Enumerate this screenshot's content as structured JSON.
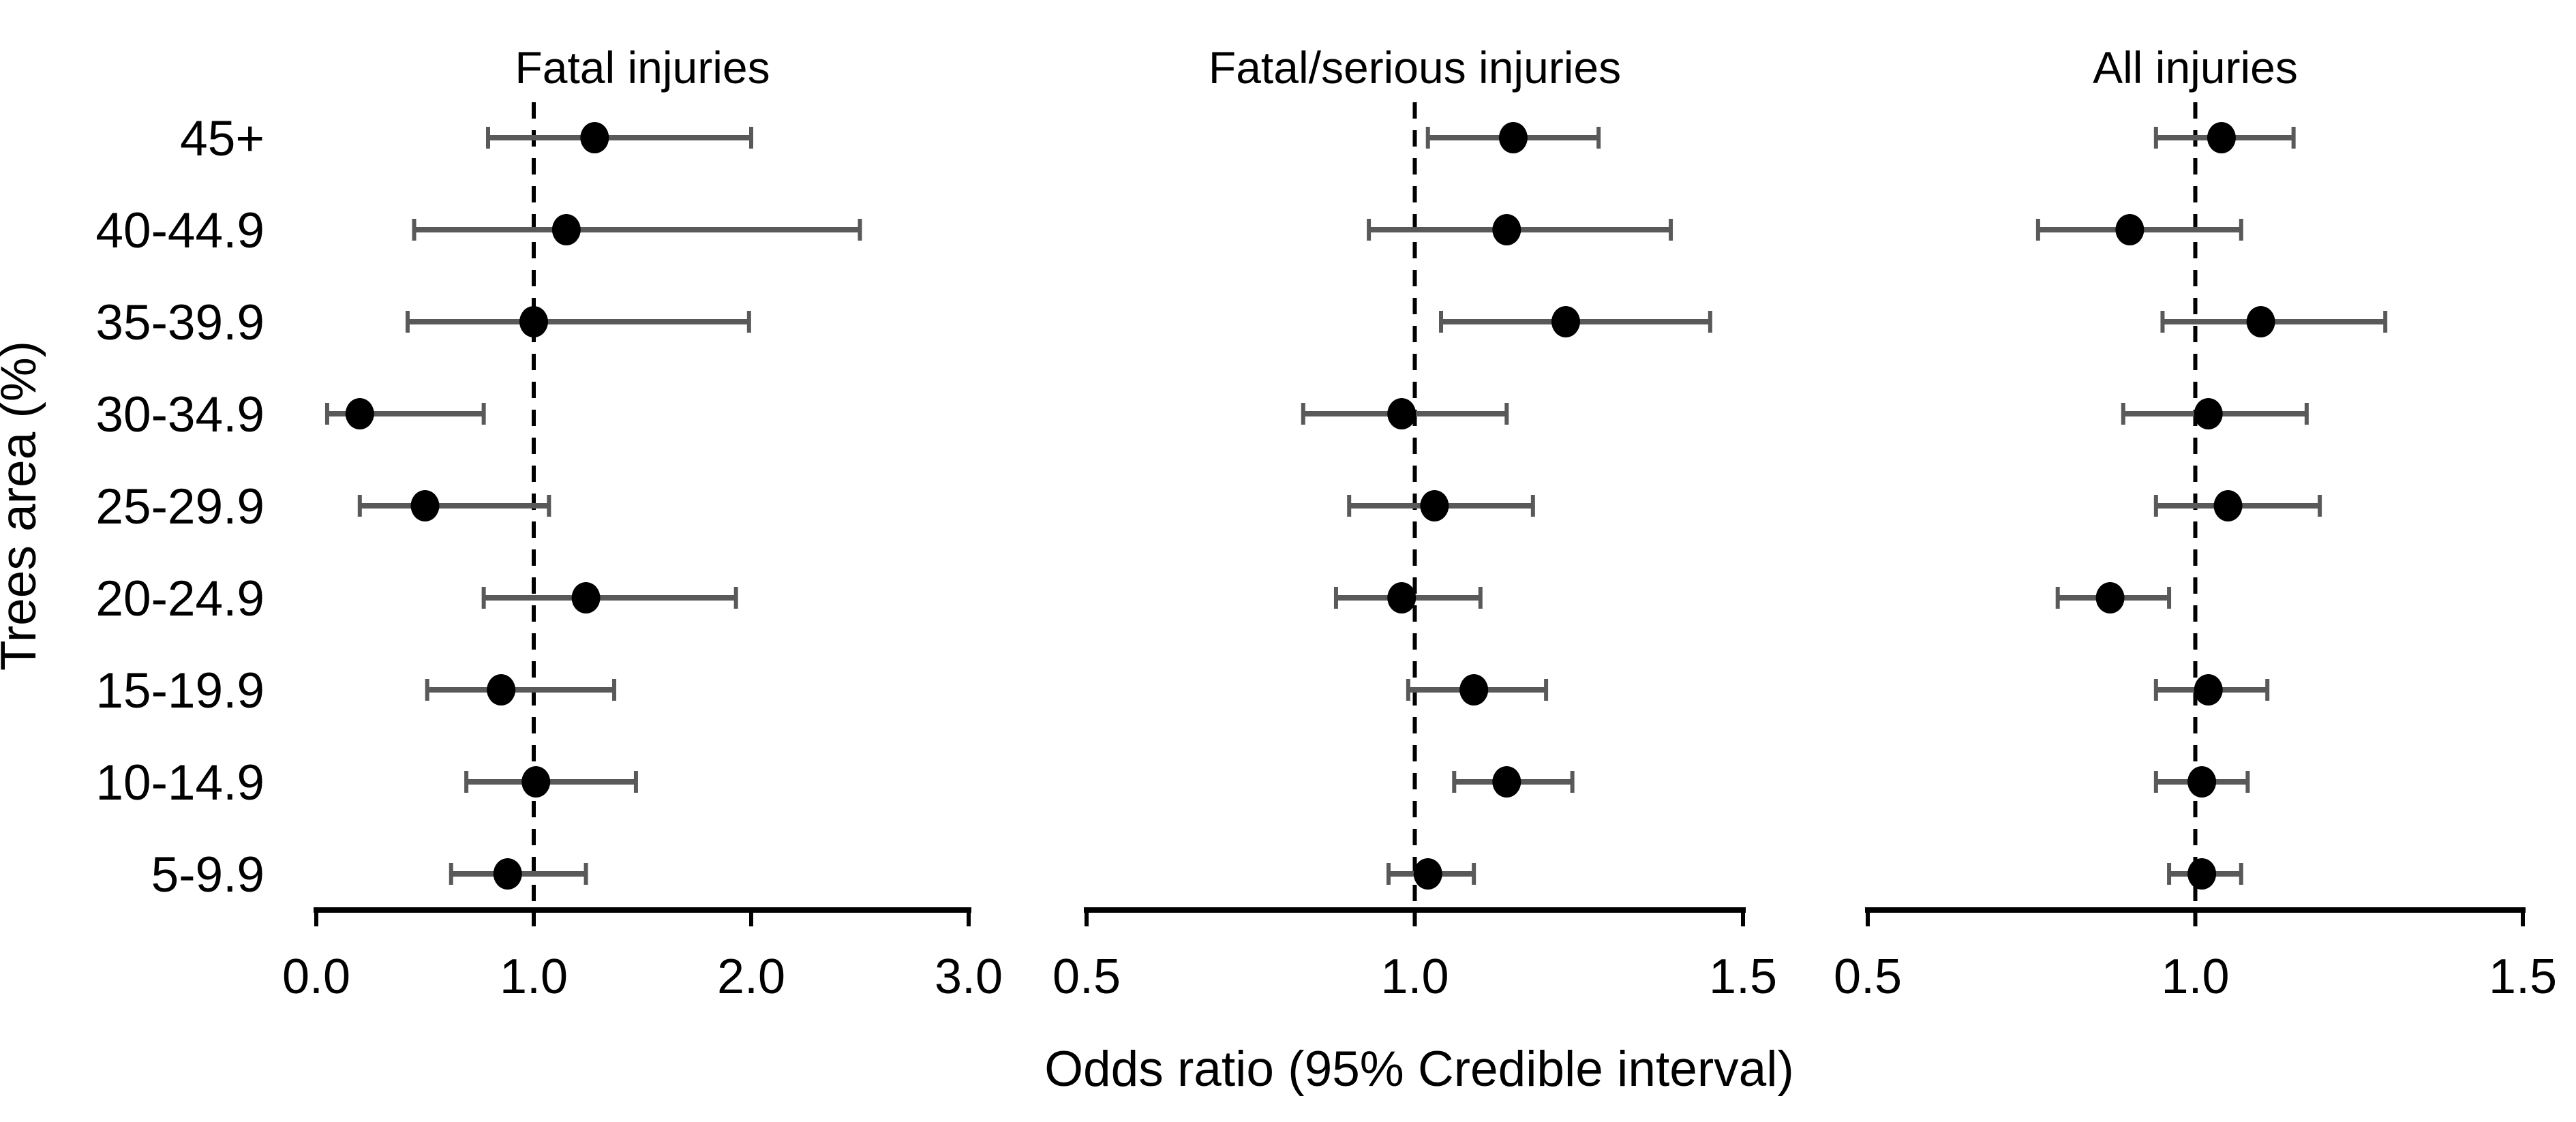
{
  "figure": {
    "y_axis_title": "Trees area (%)",
    "x_axis_title": "Odds ratio (95% Credible interval)",
    "categories": [
      "45+",
      "40-44.9",
      "35-39.9",
      "30-34.9",
      "25-29.9",
      "20-24.9",
      "15-19.9",
      "10-14.9",
      "5-9.9"
    ],
    "colors": {
      "marker": "#000000",
      "error_bar": "#595959",
      "axis": "#000000",
      "reference_line": "#000000",
      "text": "#000000",
      "background": "#ffffff"
    }
  },
  "chart_data": [
    {
      "type": "scatter",
      "subtype": "forest-plot",
      "title": "Fatal injuries",
      "categories": [
        "45+",
        "40-44.9",
        "35-39.9",
        "30-34.9",
        "25-29.9",
        "20-24.9",
        "15-19.9",
        "10-14.9",
        "5-9.9"
      ],
      "xlim": [
        0.0,
        3.0
      ],
      "xticks": [
        0.0,
        1.0,
        2.0,
        3.0
      ],
      "xtick_labels": [
        "0.0",
        "1.0",
        "2.0",
        "3.0"
      ],
      "reference_line": 1.0,
      "grid": false,
      "series": [
        {
          "name": "Odds ratio",
          "values": [
            1.28,
            1.15,
            1.0,
            0.2,
            0.5,
            1.24,
            0.85,
            1.01,
            0.88
          ],
          "ci_low": [
            0.79,
            0.45,
            0.42,
            0.05,
            0.2,
            0.77,
            0.51,
            0.69,
            0.62
          ],
          "ci_high": [
            2.0,
            2.5,
            1.99,
            0.77,
            1.07,
            1.93,
            1.37,
            1.47,
            1.24
          ]
        }
      ]
    },
    {
      "type": "scatter",
      "subtype": "forest-plot",
      "title": "Fatal/serious injuries",
      "categories": [
        "45+",
        "40-44.9",
        "35-39.9",
        "30-34.9",
        "25-29.9",
        "20-24.9",
        "15-19.9",
        "10-14.9",
        "5-9.9"
      ],
      "xlim": [
        0.5,
        1.5
      ],
      "xticks": [
        0.5,
        1.0,
        1.5
      ],
      "xtick_labels": [
        "0.5",
        "1.0",
        "1.5"
      ],
      "reference_line": 1.0,
      "grid": false,
      "series": [
        {
          "name": "Odds ratio",
          "values": [
            1.15,
            1.14,
            1.23,
            0.98,
            1.03,
            0.98,
            1.09,
            1.14,
            1.02
          ],
          "ci_low": [
            1.02,
            0.93,
            1.04,
            0.83,
            0.9,
            0.88,
            0.99,
            1.06,
            0.96
          ],
          "ci_high": [
            1.28,
            1.39,
            1.45,
            1.14,
            1.18,
            1.1,
            1.2,
            1.24,
            1.09
          ]
        }
      ]
    },
    {
      "type": "scatter",
      "subtype": "forest-plot",
      "title": "All injuries",
      "categories": [
        "45+",
        "40-44.9",
        "35-39.9",
        "30-34.9",
        "25-29.9",
        "20-24.9",
        "15-19.9",
        "10-14.9",
        "5-9.9"
      ],
      "xlim": [
        0.5,
        1.5
      ],
      "xticks": [
        0.5,
        1.0,
        1.5
      ],
      "xtick_labels": [
        "0.5",
        "1.0",
        "1.5"
      ],
      "reference_line": 1.0,
      "grid": false,
      "series": [
        {
          "name": "Odds ratio",
          "values": [
            1.04,
            0.9,
            1.1,
            1.02,
            1.05,
            0.87,
            1.02,
            1.01,
            1.01
          ],
          "ci_low": [
            0.94,
            0.76,
            0.95,
            0.89,
            0.94,
            0.79,
            0.94,
            0.94,
            0.96
          ],
          "ci_high": [
            1.15,
            1.07,
            1.29,
            1.17,
            1.19,
            0.96,
            1.11,
            1.08,
            1.07
          ]
        }
      ]
    }
  ]
}
